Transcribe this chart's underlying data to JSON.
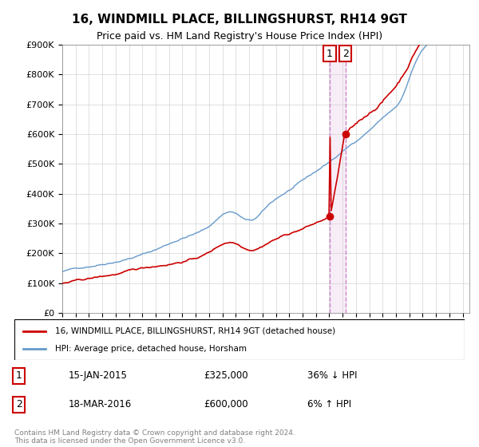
{
  "title": "16, WINDMILL PLACE, BILLINGSHURST, RH14 9GT",
  "subtitle": "Price paid vs. HM Land Registry's House Price Index (HPI)",
  "ylabel_ticks": [
    "£0",
    "£100K",
    "£200K",
    "£300K",
    "£400K",
    "£500K",
    "£600K",
    "£700K",
    "£800K",
    "£900K"
  ],
  "ylim": [
    0,
    900000
  ],
  "xlim_start": 1995.0,
  "xlim_end": 2025.5,
  "legend_line1": "16, WINDMILL PLACE, BILLINGSHURST, RH14 9GT (detached house)",
  "legend_line2": "HPI: Average price, detached house, Horsham",
  "transaction1_label": "1",
  "transaction1_date": "15-JAN-2015",
  "transaction1_price": "£325,000",
  "transaction1_hpi": "36% ↓ HPI",
  "transaction2_label": "2",
  "transaction2_date": "18-MAR-2016",
  "transaction2_price": "£600,000",
  "transaction2_hpi": "6% ↑ HPI",
  "footer": "Contains HM Land Registry data © Crown copyright and database right 2024.\nThis data is licensed under the Open Government Licence v3.0.",
  "line1_color": "#cc0000",
  "line2_color": "#6699cc",
  "vline_color": "#cc88cc",
  "marker1_color": "#cc0000",
  "marker2_color": "#cc0000",
  "transaction1_x": 2015.04,
  "transaction1_y": 325000,
  "transaction2_x": 2016.21,
  "transaction2_y": 600000,
  "vline_x1": 2015.04,
  "vline_x2": 2016.21
}
